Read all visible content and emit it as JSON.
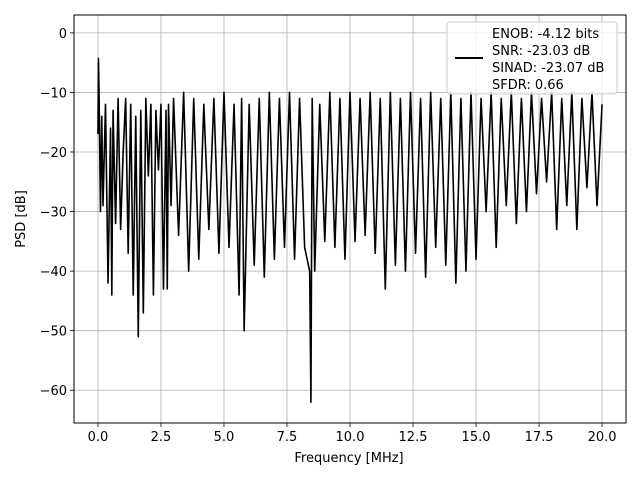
{
  "chart_data": {
    "type": "line",
    "title": "",
    "xlabel": "Frequency [MHz]",
    "ylabel": "PSD [dB]",
    "xlim": [
      -0.95,
      20.95
    ],
    "ylim": [
      -65.5,
      3
    ],
    "xticks": [
      0.0,
      2.5,
      5.0,
      7.5,
      10.0,
      12.5,
      15.0,
      17.5,
      20.0
    ],
    "xtick_labels": [
      "0.0",
      "2.5",
      "5.0",
      "7.5",
      "10.0",
      "12.5",
      "15.0",
      "17.5",
      "20.0"
    ],
    "yticks": [
      0,
      -10,
      -20,
      -30,
      -40,
      -50,
      -60
    ],
    "ytick_labels": [
      "0",
      "−10",
      "−20",
      "−30",
      "−40",
      "−50",
      "−60"
    ],
    "grid": true,
    "legend_position": "top-right",
    "series_color": "#000000",
    "legend_lines": [
      "ENOB: -4.12 bits",
      "SNR: -23.03 dB",
      "SINAD: -23.07 dB",
      "SFDR: 0.66"
    ],
    "series": [
      {
        "x": [
          0.0,
          0.02,
          0.05,
          0.1,
          0.15,
          0.2,
          0.3,
          0.4,
          0.5,
          0.55,
          0.6,
          0.7,
          0.8,
          0.9,
          1.0,
          1.1,
          1.2,
          1.3,
          1.4,
          1.5,
          1.6,
          1.7,
          1.8,
          1.9,
          2.0,
          2.1,
          2.2,
          2.3,
          2.4,
          2.5,
          2.6,
          2.7,
          2.75,
          2.8,
          2.9,
          3.0,
          3.2,
          3.4,
          3.6,
          3.8,
          4.0,
          4.2,
          4.4,
          4.6,
          4.8,
          5.0,
          5.2,
          5.4,
          5.6,
          5.7,
          5.8,
          6.0,
          6.2,
          6.4,
          6.6,
          6.8,
          7.0,
          7.2,
          7.4,
          7.6,
          7.8,
          8.0,
          8.2,
          8.4,
          8.45,
          8.5,
          8.6,
          8.8,
          9.0,
          9.2,
          9.4,
          9.6,
          9.8,
          10.0,
          10.2,
          10.4,
          10.6,
          10.8,
          11.0,
          11.2,
          11.4,
          11.6,
          11.8,
          12.0,
          12.2,
          12.4,
          12.6,
          12.8,
          13.0,
          13.2,
          13.4,
          13.6,
          13.8,
          14.0,
          14.2,
          14.4,
          14.6,
          14.8,
          15.0,
          15.2,
          15.4,
          15.6,
          15.8,
          16.0,
          16.2,
          16.4,
          16.6,
          16.8,
          17.0,
          17.2,
          17.4,
          17.6,
          17.8,
          18.0,
          18.2,
          18.4,
          18.6,
          18.8,
          19.0,
          19.2,
          19.4,
          19.6,
          19.8,
          20.0
        ],
        "y": [
          -17,
          -4.3,
          -12,
          -30,
          -14,
          -29,
          -12,
          -42,
          -16,
          -44,
          -13,
          -32,
          -11,
          -33,
          -20,
          -11,
          -37,
          -12,
          -44,
          -14,
          -51,
          -13,
          -47,
          -11,
          -24,
          -12,
          -44,
          -13,
          -23,
          -12,
          -43,
          -13,
          -43,
          -12,
          -29,
          -11,
          -34,
          -10,
          -40,
          -11,
          -38,
          -12,
          -33,
          -11,
          -37,
          -10,
          -36,
          -12,
          -44,
          -11,
          -50,
          -12,
          -39,
          -11,
          -41,
          -10,
          -38,
          -11,
          -36,
          -10,
          -38,
          -11,
          -36,
          -40,
          -62,
          -11,
          -40,
          -12,
          -35,
          -10,
          -36,
          -11,
          -38,
          -10,
          -35,
          -11,
          -34,
          -10,
          -37,
          -11,
          -43,
          -10,
          -39,
          -11,
          -40,
          -10,
          -37,
          -11,
          -41,
          -10,
          -36,
          -11,
          -39,
          -10,
          -42,
          -11,
          -40,
          -10,
          -38,
          -11,
          -30,
          -10,
          -36,
          -11,
          -29,
          -10,
          -32,
          -11,
          -30,
          -10,
          -27,
          -11,
          -25,
          -10,
          -33,
          -11,
          -29,
          -10,
          -33,
          -11,
          -26,
          -10,
          -29,
          -12
        ]
      }
    ]
  }
}
